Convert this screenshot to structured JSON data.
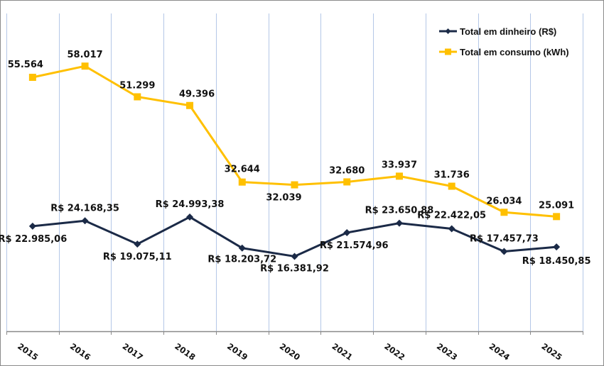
{
  "chart_data": {
    "type": "line",
    "title": "",
    "xlabel": "",
    "ylabel": "",
    "x": [
      "2015",
      "2016",
      "2017",
      "2018",
      "2019",
      "2020",
      "2021",
      "2022",
      "2023",
      "2024",
      "2025"
    ],
    "ylim": [
      0,
      70000
    ],
    "grid": "vertical",
    "legend_position": "top-right",
    "series": [
      {
        "name": "Total em dinheiro (R$)",
        "color": "#1b2a47",
        "marker": "diamond",
        "values": [
          22985.06,
          24168.35,
          19075.11,
          24993.38,
          18203.72,
          16381.92,
          21574.96,
          23650.88,
          22422.05,
          17457.73,
          18450.85
        ],
        "labels": [
          "R$ 22.985,06",
          "R$ 24.168,35",
          "R$ 19.075,11",
          "R$ 24.993,38",
          "R$ 18.203,72",
          "R$ 16.381,92",
          "R$ 21.574,96",
          "R$ 23.650,88",
          "R$ 22.422,05",
          "R$ 17.457,73",
          "R$ 18.450,85"
        ],
        "label_pos": [
          "below",
          "above",
          "below",
          "above",
          "below",
          "below",
          "below",
          "above",
          "above",
          "above",
          "below"
        ]
      },
      {
        "name": "Total em consumo (kWh)",
        "color": "#ffc000",
        "marker": "square",
        "values": [
          55564,
          58017,
          51299,
          49396,
          32644,
          32039,
          32680,
          33937,
          31736,
          26034,
          25091
        ],
        "labels": [
          "55.564",
          "58.017",
          "51.299",
          "49.396",
          "32.644",
          "32.039",
          "32.680",
          "33.937",
          "31.736",
          "26.034",
          "25.091"
        ],
        "label_pos": [
          "above",
          "above",
          "above",
          "above",
          "above",
          "below",
          "above",
          "above",
          "above",
          "above",
          "above"
        ]
      }
    ]
  },
  "colors": {
    "gridline": "#b4c7e7",
    "axis": "#8a8a8a",
    "border": "#8a8a8a"
  }
}
